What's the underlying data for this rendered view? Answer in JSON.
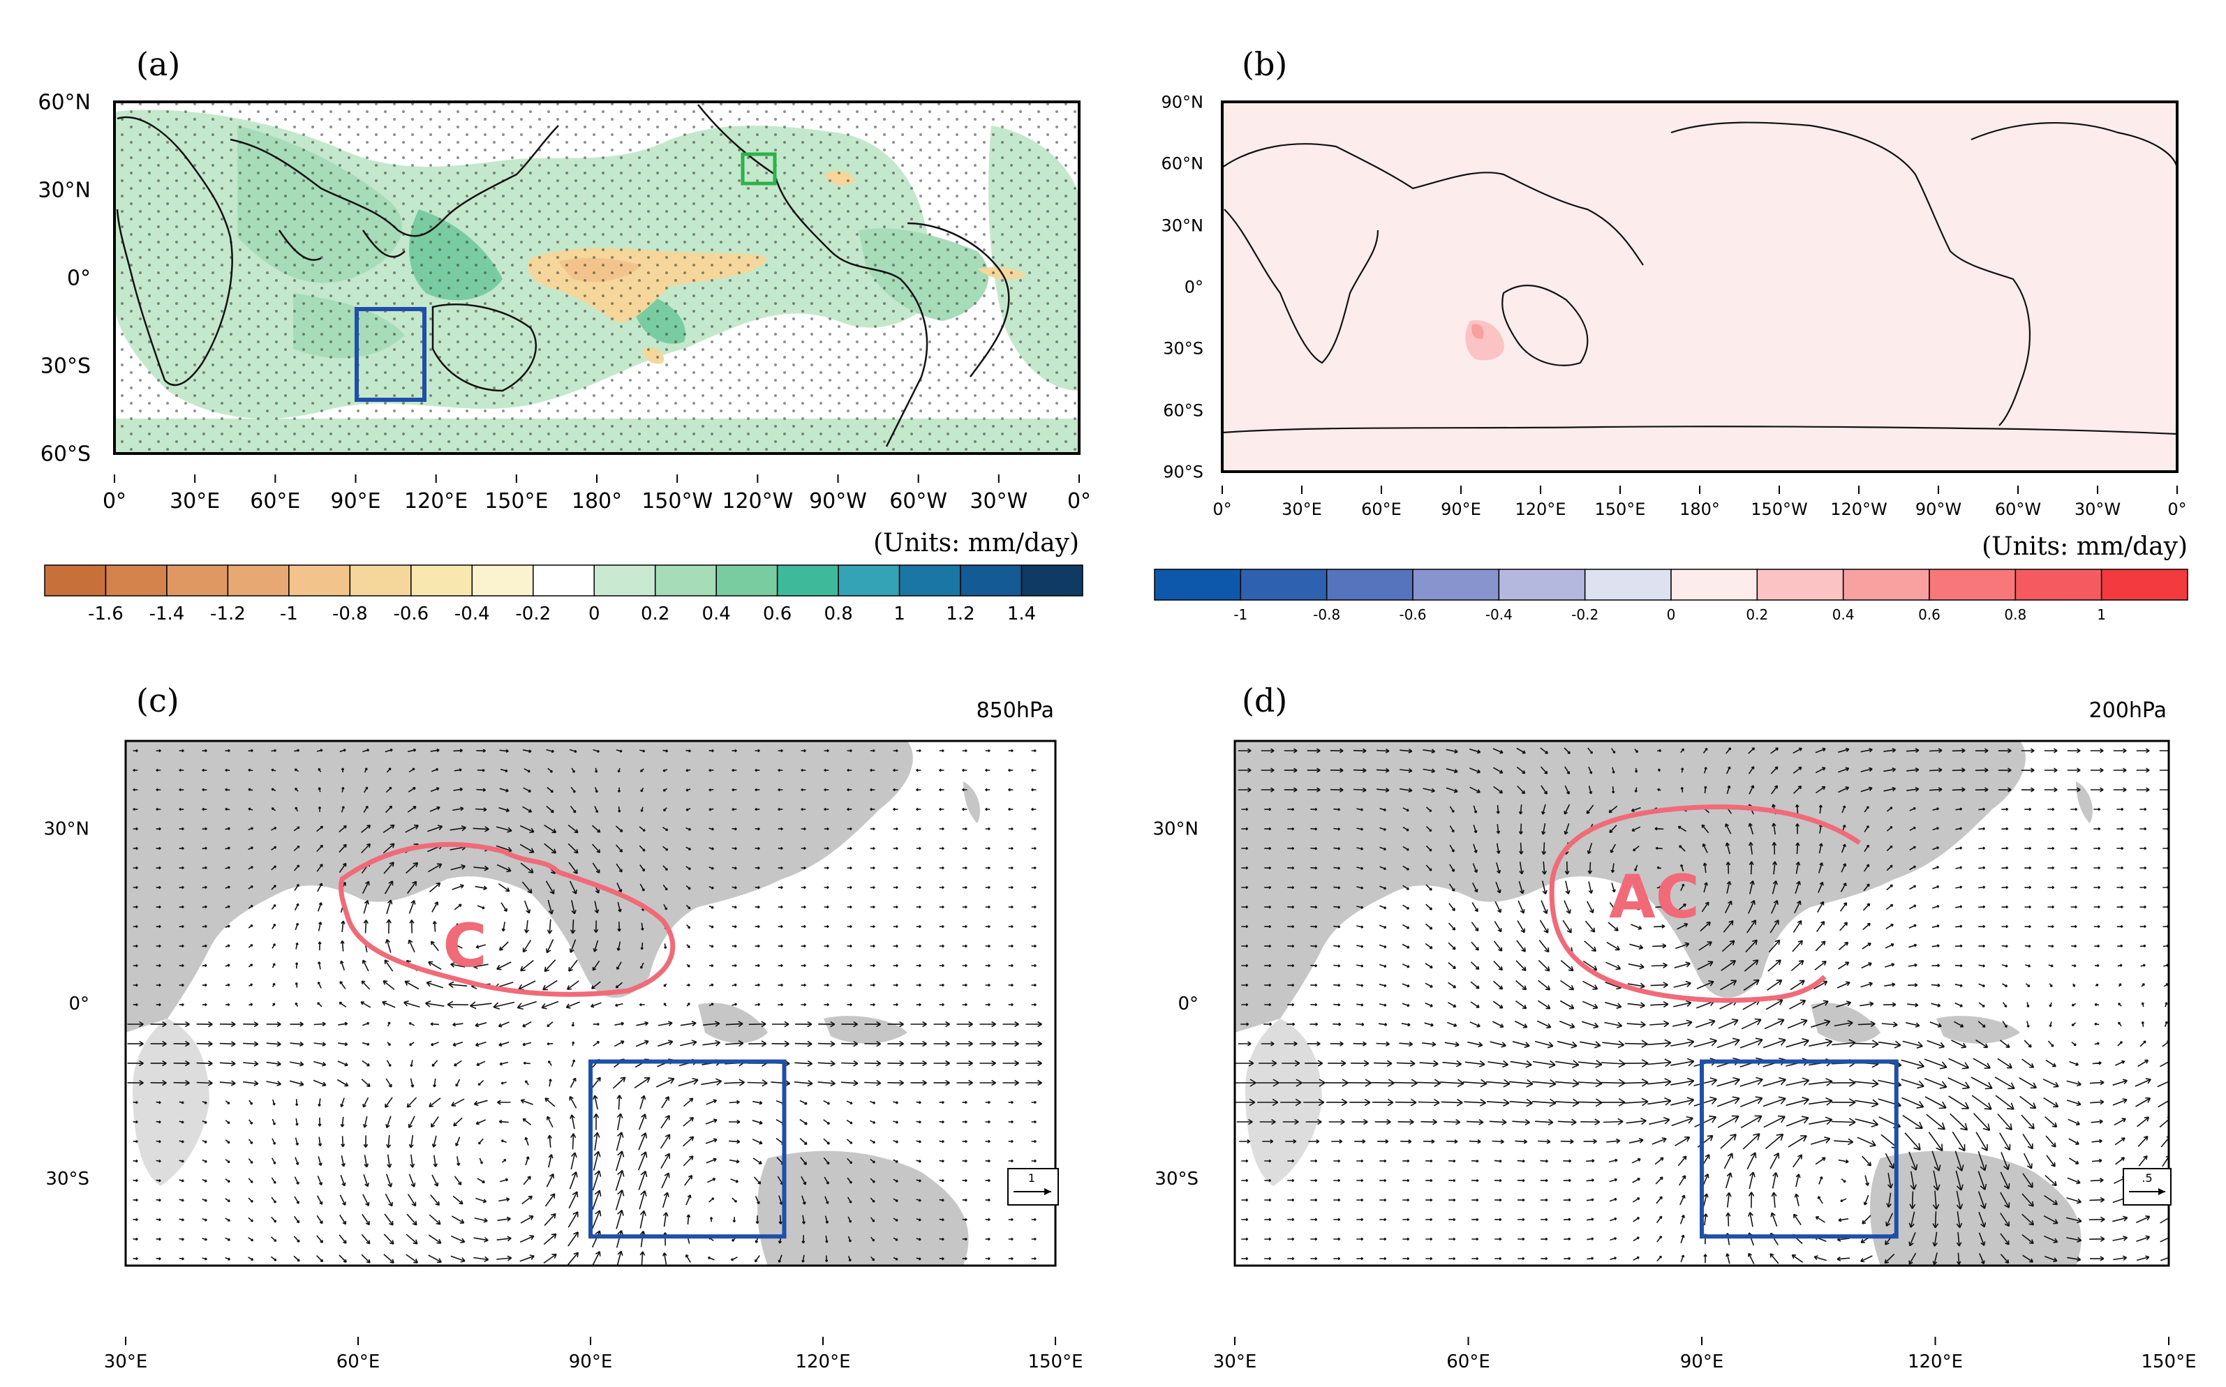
{
  "chart_data": [
    {
      "id": "a",
      "type": "heatmap",
      "panel_label": "(a)",
      "units_label": "(Units: mm/day)",
      "x_ticks": [
        "0°",
        "30°E",
        "60°E",
        "90°E",
        "120°E",
        "150°E",
        "180°",
        "150°W",
        "120°W",
        "90°W",
        "60°W",
        "30°W",
        "0°"
      ],
      "y_ticks": [
        "60°N",
        "30°N",
        "0°",
        "30°S",
        "60°S"
      ],
      "colorbar_labels": [
        "-1.6",
        "-1.4",
        "-1.2",
        "-1",
        "-0.8",
        "-0.6",
        "-0.4",
        "-0.2",
        "0",
        "0.2",
        "0.4",
        "0.6",
        "0.8",
        "1",
        "1.2",
        "1.4"
      ],
      "colorbar_colors": [
        "#c8703a",
        "#d5834c",
        "#e09862",
        "#e8a874",
        "#f2c48b",
        "#f5d79b",
        "#f8e8b0",
        "#fbf3cf",
        "#ffffff",
        "#c9ead1",
        "#a6dcb8",
        "#78cca0",
        "#3eb99a",
        "#35a3b6",
        "#1a76a4",
        "#145a94",
        "#0e3a63"
      ],
      "boxes": [
        {
          "name": "blue-box",
          "color": "#1f4fa8",
          "lon": [
            90,
            115
          ],
          "lat": [
            -40,
            -10
          ]
        },
        {
          "name": "green-box",
          "color": "#2db24a",
          "lon": [
            238,
            250
          ],
          "lat": [
            35,
            45
          ]
        }
      ]
    },
    {
      "id": "b",
      "type": "heatmap",
      "panel_label": "(b)",
      "units_label": "(Units: mm/day)",
      "x_ticks": [
        "0°",
        "30°E",
        "60°E",
        "90°E",
        "120°E",
        "150°E",
        "180°",
        "150°W",
        "120°W",
        "90°W",
        "60°W",
        "30°W",
        "0°"
      ],
      "y_ticks": [
        "90°N",
        "60°N",
        "30°N",
        "0°",
        "30°S",
        "60°S",
        "90°S"
      ],
      "colorbar_labels": [
        "-1",
        "-0.8",
        "-0.6",
        "-0.4",
        "-0.2",
        "0",
        "0.2",
        "0.4",
        "0.6",
        "0.8",
        "1"
      ],
      "colorbar_colors": [
        "#0d58aa",
        "#2e61b0",
        "#5673bd",
        "#8794cd",
        "#b4b8df",
        "#dde1f0",
        "#fdecec",
        "#fbc3c3",
        "#f9a0a0",
        "#f7777b",
        "#f45a60",
        "#f23a3f"
      ]
    },
    {
      "id": "c",
      "type": "vector",
      "panel_label": "(c)",
      "level_label": "850hPa",
      "x_ticks": [
        "30°E",
        "60°E",
        "90°E",
        "120°E",
        "150°E"
      ],
      "y_ticks": [
        "30°N",
        "0°",
        "30°S"
      ],
      "annotation": "C",
      "ref_vector": "1",
      "box": {
        "lon": [
          90,
          115
        ],
        "lat": [
          -40,
          -10
        ]
      }
    },
    {
      "id": "d",
      "type": "vector",
      "panel_label": "(d)",
      "level_label": "200hPa",
      "x_ticks": [
        "30°E",
        "60°E",
        "90°E",
        "120°E",
        "150°E"
      ],
      "y_ticks": [
        "30°N",
        "0°",
        "30°S"
      ],
      "annotation": "AC",
      "ref_vector": ".5",
      "box": {
        "lon": [
          90,
          115
        ],
        "lat": [
          -40,
          -10
        ]
      }
    }
  ]
}
